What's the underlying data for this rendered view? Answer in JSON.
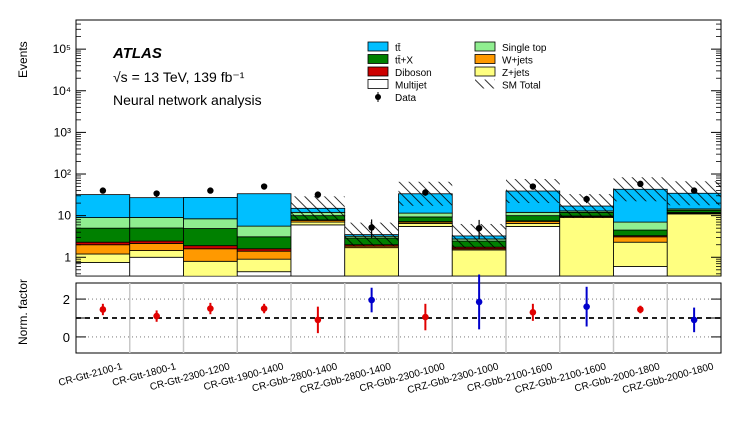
{
  "chart_data": {
    "type": "bar",
    "subtype": "stacked-histogram-log-with-ratio-panel",
    "experiment": "ATLAS",
    "energy_label": "√s = 13 TeV, 139 fb⁻¹",
    "analysis_label": "Neural network analysis",
    "ylabel_top": "Events",
    "ylabel_bottom": "Norm. factor",
    "ylim_top_log10": [
      -0.45,
      5.7
    ],
    "ylim_bottom": [
      -0.85,
      2.85
    ],
    "top_ticks": [
      {
        "value": 1,
        "label": "1"
      },
      {
        "value": 10,
        "label": "10"
      },
      {
        "value": 100,
        "label": "10²"
      },
      {
        "value": 1000,
        "label": "10³"
      },
      {
        "value": 10000,
        "label": "10⁴"
      },
      {
        "value": 100000,
        "label": "10⁵"
      }
    ],
    "bottom_ticks": [
      {
        "value": 0,
        "label": "0"
      },
      {
        "value": 1,
        "label": ""
      },
      {
        "value": 2,
        "label": "2"
      }
    ],
    "categories": [
      "CR-Gtt-2100-1",
      "CR-Gtt-1800-1",
      "CR-Gtt-2300-1200",
      "CR-Gtt-1900-1400",
      "CR-Gbb-2800-1400",
      "CRZ-Gbb-2800-1400",
      "CR-Gbb-2300-1000",
      "CRZ-Gbb-2300-1000",
      "CR-Gbb-2100-1600",
      "CRZ-Gbb-2100-1600",
      "CR-Gbb-2000-1800",
      "CRZ-Gbb-2000-1800"
    ],
    "series": [
      {
        "name": "Multijet",
        "color": "#ffffff",
        "values": [
          0.75,
          1.0,
          0.35,
          0.45,
          6.0,
          0.0,
          5.5,
          0.0,
          5.5,
          0.0,
          0.6,
          0.0
        ]
      },
      {
        "name": "Z+jets",
        "color": "#ffff80",
        "values": [
          0.45,
          0.45,
          0.45,
          0.45,
          1.0,
          1.7,
          1.0,
          1.5,
          1.0,
          9.0,
          1.7,
          11.0
        ]
      },
      {
        "name": "W+jets",
        "color": "#ff9900",
        "values": [
          0.8,
          0.7,
          0.8,
          0.5,
          0.7,
          0.15,
          0.5,
          0.1,
          0.8,
          0.5,
          0.8,
          0.5
        ]
      },
      {
        "name": "Diboson",
        "color": "#cc0000",
        "values": [
          0.3,
          0.3,
          0.3,
          0.2,
          0.2,
          0.15,
          0.2,
          0.15,
          0.2,
          0.3,
          0.2,
          0.4
        ]
      },
      {
        "name": "tt̄+X",
        "color": "#008000",
        "values": [
          2.7,
          2.6,
          3.0,
          1.5,
          2.1,
          0.9,
          2.1,
          0.7,
          2.5,
          2.2,
          1.2,
          1.6
        ]
      },
      {
        "name": "Single top",
        "color": "#90ee90",
        "values": [
          4.0,
          4.0,
          3.5,
          2.5,
          2.0,
          0.3,
          2.2,
          0.3,
          2.0,
          1.0,
          2.5,
          1.0
        ]
      },
      {
        "name": "tt̄",
        "color": "#00bfff",
        "values": [
          23.0,
          18.0,
          19.0,
          28.0,
          3.0,
          0.3,
          22.0,
          0.5,
          27.0,
          4.0,
          36.0,
          20.0
        ]
      }
    ],
    "data": [
      40,
      34,
      40,
      50,
      32,
      5.2,
      36,
      5.0,
      50,
      25,
      58,
      40
    ],
    "data_err_lo": [
      6,
      6,
      6,
      7,
      6,
      2.3,
      6,
      2.3,
      7,
      5,
      8,
      6
    ],
    "data_err_hi": [
      7,
      6,
      7,
      8,
      6,
      2.9,
      7,
      2.9,
      8,
      5,
      9,
      7
    ],
    "hatched_bins": [
      4,
      5,
      6,
      7,
      8,
      9,
      10,
      11
    ],
    "norm_factors": [
      {
        "value": 1.45,
        "err": 0.3,
        "color": "#e00000"
      },
      {
        "value": 1.1,
        "err": 0.3,
        "color": "#e00000"
      },
      {
        "value": 1.5,
        "err": 0.3,
        "color": "#e00000"
      },
      {
        "value": 1.5,
        "err": 0.25,
        "color": "#e00000"
      },
      {
        "value": 0.9,
        "err": 0.7,
        "color": "#e00000"
      },
      {
        "value": 1.95,
        "err": 0.65,
        "color": "#0000cc"
      },
      {
        "value": 1.05,
        "err": 0.7,
        "color": "#e00000"
      },
      {
        "value": 1.85,
        "err": 1.45,
        "color": "#0000cc"
      },
      {
        "value": 1.3,
        "err": 0.45,
        "color": "#e00000"
      },
      {
        "value": 1.6,
        "err": 1.05,
        "color": "#0000cc"
      },
      {
        "value": 1.45,
        "err": 0.2,
        "color": "#e00000"
      },
      {
        "value": 0.9,
        "err": 0.65,
        "color": "#0000cc"
      }
    ],
    "legend": [
      {
        "label": "tt̄",
        "kind": "box",
        "color": "#00bfff"
      },
      {
        "label": "tt̄+X",
        "kind": "box",
        "color": "#008000"
      },
      {
        "label": "Diboson",
        "kind": "box",
        "color": "#cc0000"
      },
      {
        "label": "Multijet",
        "kind": "box",
        "color": "#ffffff"
      },
      {
        "label": "Data",
        "kind": "marker",
        "color": "#000000"
      },
      {
        "label": "Single top",
        "kind": "box",
        "color": "#90ee90"
      },
      {
        "label": "W+jets",
        "kind": "box",
        "color": "#ff9900"
      },
      {
        "label": "Z+jets",
        "kind": "box",
        "color": "#ffff80"
      },
      {
        "label": "SM Total",
        "kind": "hatch",
        "color": "#000000"
      }
    ]
  }
}
